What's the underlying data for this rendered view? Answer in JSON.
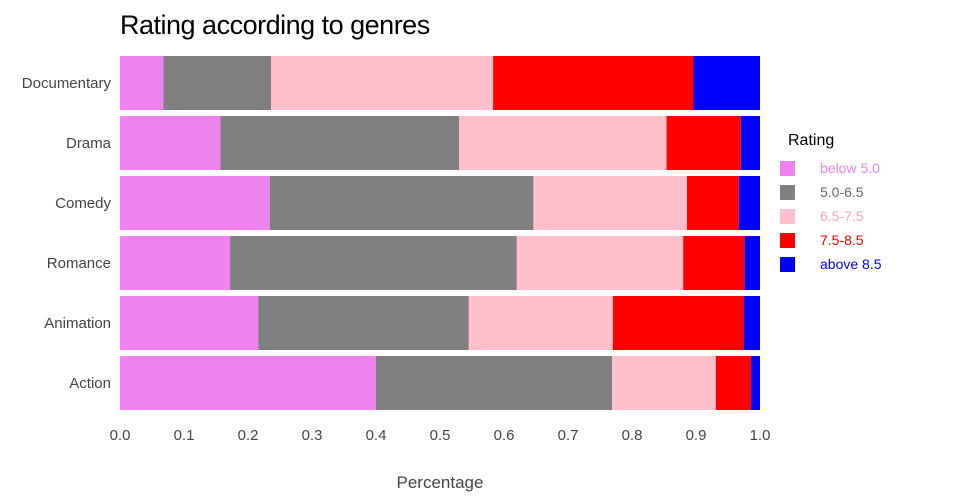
{
  "chart_data": {
    "type": "bar",
    "orientation": "horizontal",
    "stacked": true,
    "title": "Rating according to genres",
    "xlabel": "Percentage",
    "ylabel": "",
    "xlim": [
      0,
      1
    ],
    "x_ticks": [
      "0.0",
      "0.1",
      "0.2",
      "0.3",
      "0.4",
      "0.5",
      "0.6",
      "0.7",
      "0.8",
      "0.9",
      "1.0"
    ],
    "categories": [
      "Documentary",
      "Drama",
      "Comedy",
      "Romance",
      "Animation",
      "Action"
    ],
    "legend_title": "Rating",
    "legend_position": "right",
    "grid": false,
    "series": [
      {
        "name": "below 5.0",
        "color": "#ee82ee",
        "values": [
          0.068,
          0.157,
          0.234,
          0.172,
          0.216,
          0.4
        ]
      },
      {
        "name": "5.0-6.5",
        "color": "#808080",
        "values": [
          0.168,
          0.373,
          0.412,
          0.448,
          0.329,
          0.369
        ]
      },
      {
        "name": "6.5-7.5",
        "color": "#ffc0cb",
        "values": [
          0.347,
          0.324,
          0.24,
          0.26,
          0.225,
          0.162
        ]
      },
      {
        "name": "7.5-8.5",
        "color": "#ff0000",
        "values": [
          0.313,
          0.116,
          0.081,
          0.096,
          0.205,
          0.055
        ]
      },
      {
        "name": "above 8.5",
        "color": "#0000ff",
        "values": [
          0.104,
          0.03,
          0.033,
          0.024,
          0.025,
          0.014
        ]
      }
    ]
  }
}
